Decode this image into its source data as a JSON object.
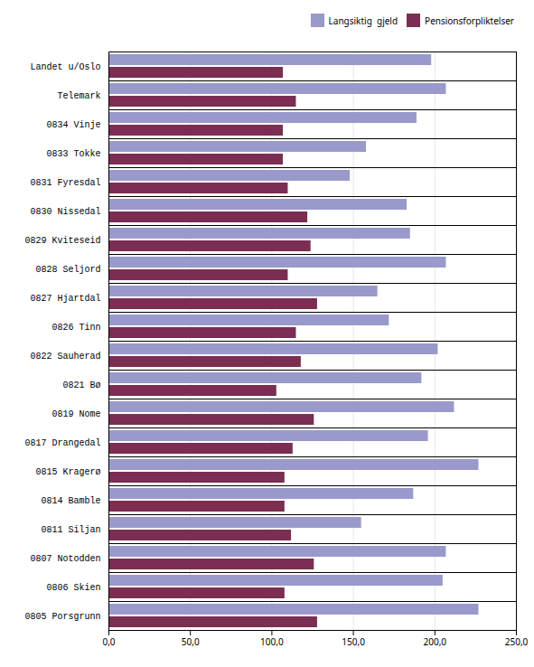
{
  "chart_data": {
    "type": "bar",
    "orientation": "horizontal",
    "categories": [
      "0805 Porsgrunn",
      "0806 Skien",
      "0807 Notodden",
      "0811 Siljan",
      "0814 Bamble",
      "0815 Kragerø",
      "0817 Drangedal",
      "0819 Nome",
      "0821 Bø",
      "0822 Sauherad",
      "0826 Tinn",
      "0827 Hjartdal",
      "0828 Seljord",
      "0829 Kviteseid",
      "0830 Nissedal",
      "0831 Fyresdal",
      "0833 Tokke",
      "0834 Vinje",
      "Telemark",
      "Landet u/Oslo"
    ],
    "series": [
      {
        "name": "Langsiktig  gjeld",
        "color": "#9999cc",
        "values": [
          227,
          205,
          207,
          155,
          187,
          227,
          196,
          212,
          192,
          202,
          172,
          165,
          207,
          185,
          183,
          148,
          158,
          189,
          207,
          198
        ]
      },
      {
        "name": "Pensionsforpliktelser",
        "color": "#7b2d52",
        "values": [
          128,
          108,
          126,
          112,
          108,
          108,
          113,
          126,
          103,
          118,
          115,
          128,
          110,
          124,
          122,
          110,
          107,
          107,
          115,
          107
        ]
      }
    ],
    "xlim": [
      0,
      250
    ],
    "xticks": [
      {
        "value": 0,
        "label": "0,0"
      },
      {
        "value": 50,
        "label": "50,0"
      },
      {
        "value": 100,
        "label": "100,0"
      },
      {
        "value": 150,
        "label": "150,0"
      },
      {
        "value": 200,
        "label": "200,0"
      },
      {
        "value": 250,
        "label": "250,0"
      }
    ],
    "grid": true,
    "legend": "upper right"
  }
}
